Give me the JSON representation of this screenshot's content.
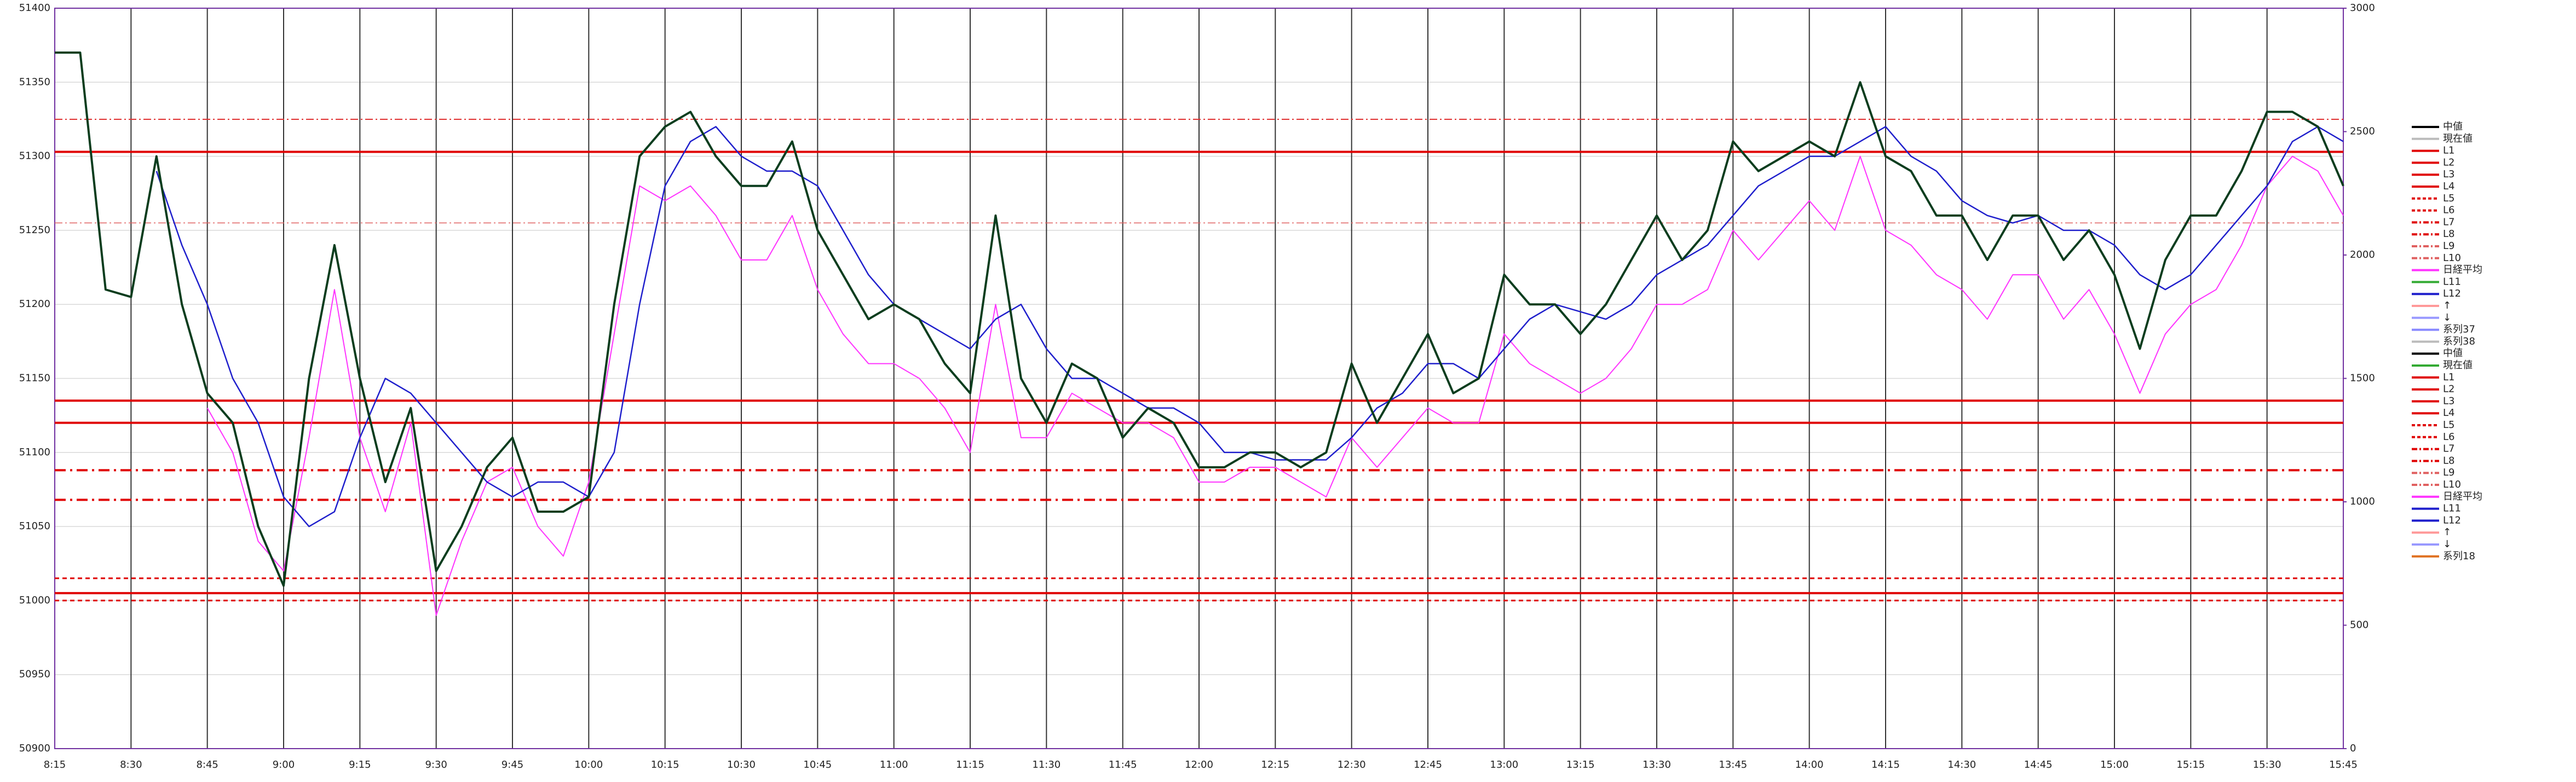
{
  "chart_data": {
    "type": "line",
    "xlim": [
      495,
      945
    ],
    "xticks": [
      {
        "value": 495,
        "label": "8:15"
      },
      {
        "value": 510,
        "label": "8:30"
      },
      {
        "value": 525,
        "label": "8:45"
      },
      {
        "value": 540,
        "label": "9:00"
      },
      {
        "value": 555,
        "label": "9:15"
      },
      {
        "value": 570,
        "label": "9:30"
      },
      {
        "value": 585,
        "label": "9:45"
      },
      {
        "value": 600,
        "label": "10:00"
      },
      {
        "value": 615,
        "label": "10:15"
      },
      {
        "value": 630,
        "label": "10:30"
      },
      {
        "value": 645,
        "label": "10:45"
      },
      {
        "value": 660,
        "label": "11:00"
      },
      {
        "value": 675,
        "label": "11:15"
      },
      {
        "value": 690,
        "label": "11:30"
      },
      {
        "value": 705,
        "label": "11:45"
      },
      {
        "value": 720,
        "label": "12:00"
      },
      {
        "value": 735,
        "label": "12:15"
      },
      {
        "value": 750,
        "label": "12:30"
      },
      {
        "value": 765,
        "label": "12:45"
      },
      {
        "value": 780,
        "label": "13:00"
      },
      {
        "value": 795,
        "label": "13:15"
      },
      {
        "value": 810,
        "label": "13:30"
      },
      {
        "value": 825,
        "label": "13:45"
      },
      {
        "value": 840,
        "label": "14:00"
      },
      {
        "value": 855,
        "label": "14:15"
      },
      {
        "value": 870,
        "label": "14:30"
      },
      {
        "value": 885,
        "label": "14:45"
      },
      {
        "value": 900,
        "label": "15:00"
      },
      {
        "value": 915,
        "label": "15:15"
      },
      {
        "value": 930,
        "label": "15:30"
      },
      {
        "value": 945,
        "label": "15:45"
      }
    ],
    "ylim": [
      50900,
      51400
    ],
    "yticks": [
      50900,
      50950,
      51000,
      51050,
      51100,
      51150,
      51200,
      51250,
      51300,
      51350,
      51400
    ],
    "y2lim": [
      0,
      3000
    ],
    "y2ticks": [
      0,
      500,
      1000,
      1500,
      2000,
      2500,
      3000
    ],
    "grid": true,
    "x": [
      495,
      500,
      505,
      510,
      515,
      520,
      525,
      530,
      535,
      540,
      545,
      550,
      555,
      560,
      565,
      570,
      575,
      580,
      585,
      590,
      595,
      600,
      605,
      610,
      615,
      620,
      625,
      630,
      635,
      640,
      645,
      650,
      655,
      660,
      665,
      670,
      675,
      680,
      685,
      690,
      695,
      700,
      705,
      710,
      715,
      720,
      725,
      730,
      735,
      740,
      745,
      750,
      755,
      760,
      765,
      770,
      775,
      780,
      785,
      790,
      795,
      800,
      805,
      810,
      815,
      820,
      825,
      830,
      835,
      840,
      845,
      850,
      855,
      860,
      865,
      870,
      875,
      880,
      885,
      890,
      895,
      900,
      905,
      910,
      915,
      920,
      925,
      930,
      935,
      940,
      945
    ],
    "series": [
      {
        "name": "中値",
        "color": "#0b3d1e",
        "width": 4,
        "values": [
          51370,
          51370,
          51210,
          51205,
          51300,
          51200,
          51140,
          51120,
          51050,
          51010,
          51150,
          51240,
          51150,
          51080,
          51130,
          51020,
          51050,
          51090,
          51110,
          51060,
          51060,
          51070,
          51200,
          51300,
          51320,
          51330,
          51300,
          51280,
          51280,
          51310,
          51250,
          51220,
          51190,
          51200,
          51190,
          51160,
          51140,
          51260,
          51150,
          51120,
          51160,
          51150,
          51110,
          51130,
          51120,
          51090,
          51090,
          51100,
          51100,
          51090,
          51100,
          51160,
          51120,
          51150,
          51180,
          51140,
          51150,
          51220,
          51200,
          51200,
          51180,
          51200,
          51230,
          51260,
          51230,
          51250,
          51310,
          51290,
          51300,
          51310,
          51300,
          51350,
          51300,
          51290,
          51260,
          51260,
          51230,
          51260,
          51260,
          51230,
          51250,
          51220,
          51170,
          51230,
          51260,
          51260,
          51290,
          51330,
          51330,
          51320,
          51280
        ]
      },
      {
        "name": "L12",
        "color": "#1f1fcc",
        "width": 2.5,
        "values": [
          null,
          null,
          null,
          null,
          51290,
          51240,
          51200,
          51150,
          51120,
          51070,
          51050,
          51060,
          51110,
          51150,
          51140,
          51120,
          51100,
          51080,
          51070,
          51080,
          51080,
          51070,
          51100,
          51200,
          51280,
          51310,
          51320,
          51300,
          51290,
          51290,
          51280,
          51250,
          51220,
          51200,
          51190,
          51180,
          51170,
          51190,
          51200,
          51170,
          51150,
          51150,
          51140,
          51130,
          51130,
          51120,
          51100,
          51100,
          51095,
          51095,
          51095,
          51110,
          51130,
          51140,
          51160,
          51160,
          51150,
          51170,
          51190,
          51200,
          51195,
          51190,
          51200,
          51220,
          51230,
          51240,
          51260,
          51280,
          51290,
          51300,
          51300,
          51310,
          51320,
          51300,
          51290,
          51270,
          51260,
          51255,
          51260,
          51250,
          51250,
          51240,
          51220,
          51210,
          51220,
          51240,
          51260,
          51280,
          51310,
          51320,
          51310
        ]
      },
      {
        "name": "日経平均",
        "color": "#ff33ff",
        "width": 2,
        "values": [
          null,
          null,
          null,
          null,
          null,
          null,
          51130,
          51100,
          51040,
          51020,
          51110,
          51210,
          51110,
          51060,
          51120,
          50990,
          51040,
          51080,
          51090,
          51050,
          51030,
          51080,
          51180,
          51280,
          51270,
          51280,
          51260,
          51230,
          51230,
          51260,
          51210,
          51180,
          51160,
          51160,
          51150,
          51130,
          51100,
          51200,
          51110,
          51110,
          51140,
          51130,
          51120,
          51120,
          51110,
          51080,
          51080,
          51090,
          51090,
          51080,
          51070,
          51110,
          51090,
          51110,
          51130,
          51120,
          51120,
          51180,
          51160,
          51150,
          51140,
          51150,
          51170,
          51200,
          51200,
          51210,
          51250,
          51230,
          51250,
          51270,
          51250,
          51300,
          51250,
          51240,
          51220,
          51210,
          51190,
          51220,
          51220,
          51190,
          51210,
          51180,
          51140,
          51180,
          51200,
          51210,
          51240,
          51280,
          51300,
          51290,
          51260
        ]
      }
    ],
    "levels": [
      {
        "value": 51325,
        "color": "#e03030",
        "dash": "14 5 3 5",
        "width": 2
      },
      {
        "value": 51303,
        "color": "#e00000",
        "dash": "",
        "width": 4
      },
      {
        "value": 51255,
        "color": "#e06060",
        "dash": "14 5 3 5",
        "width": 1.5
      },
      {
        "value": 51135,
        "color": "#e00000",
        "dash": "",
        "width": 4
      },
      {
        "value": 51120,
        "color": "#e00000",
        "dash": "",
        "width": 4
      },
      {
        "value": 51088,
        "color": "#e00000",
        "dash": "20 8 4 8",
        "width": 4
      },
      {
        "value": 51068,
        "color": "#e00000",
        "dash": "20 8 4 8",
        "width": 4
      },
      {
        "value": 51015,
        "color": "#e00000",
        "dash": "8 6",
        "width": 3
      },
      {
        "value": 51005,
        "color": "#e00000",
        "dash": "",
        "width": 4
      },
      {
        "value": 51000,
        "color": "#e00000",
        "dash": "8 6",
        "width": 3
      }
    ],
    "legend": [
      {
        "name": "中値",
        "color": "#000000",
        "dash": ""
      },
      {
        "name": "現在値",
        "color": "#bbbbbb",
        "dash": ""
      },
      {
        "name": "L1",
        "color": "#e00000",
        "dash": ""
      },
      {
        "name": "L2",
        "color": "#e00000",
        "dash": ""
      },
      {
        "name": "L3",
        "color": "#e00000",
        "dash": ""
      },
      {
        "name": "L4",
        "color": "#e00000",
        "dash": ""
      },
      {
        "name": "L5",
        "color": "#e00000",
        "dash": "6 4"
      },
      {
        "name": "L6",
        "color": "#e00000",
        "dash": "6 4"
      },
      {
        "name": "L7",
        "color": "#e00000",
        "dash": "10 4 3 4"
      },
      {
        "name": "L8",
        "color": "#e00000",
        "dash": "10 4 3 4"
      },
      {
        "name": "L9",
        "color": "#e06060",
        "dash": "10 4 3 4"
      },
      {
        "name": "L10",
        "color": "#e06060",
        "dash": "10 4 3 4"
      },
      {
        "name": "日経平均",
        "color": "#ff33ff",
        "dash": ""
      },
      {
        "name": "L11",
        "color": "#33aa33",
        "dash": ""
      },
      {
        "name": "L12",
        "color": "#1f1fcc",
        "dash": ""
      },
      {
        "name": "↑",
        "color": "#ff9999",
        "dash": ""
      },
      {
        "name": "↓",
        "color": "#9999ff",
        "dash": ""
      },
      {
        "name": "系列37",
        "color": "#8888ff",
        "dash": ""
      },
      {
        "name": "系列38",
        "color": "#bbbbbb",
        "dash": ""
      },
      {
        "name": "中値",
        "color": "#000000",
        "dash": ""
      },
      {
        "name": "現在値",
        "color": "#33aa33",
        "dash": ""
      },
      {
        "name": "L1",
        "color": "#e00000",
        "dash": ""
      },
      {
        "name": "L2",
        "color": "#e00000",
        "dash": ""
      },
      {
        "name": "L3",
        "color": "#e00000",
        "dash": ""
      },
      {
        "name": "L4",
        "color": "#e00000",
        "dash": ""
      },
      {
        "name": "L5",
        "color": "#e00000",
        "dash": "6 4"
      },
      {
        "name": "L6",
        "color": "#e00000",
        "dash": "6 4"
      },
      {
        "name": "L7",
        "color": "#e00000",
        "dash": "10 4 3 4"
      },
      {
        "name": "L8",
        "color": "#e00000",
        "dash": "10 4 3 4"
      },
      {
        "name": "L9",
        "color": "#e06060",
        "dash": "10 4 3 4"
      },
      {
        "name": "L10",
        "color": "#e06060",
        "dash": "10 4 3 4"
      },
      {
        "name": "日経平均",
        "color": "#ff33ff",
        "dash": ""
      },
      {
        "name": "L11",
        "color": "#1f1fcc",
        "dash": ""
      },
      {
        "name": "L12",
        "color": "#1f1fcc",
        "dash": ""
      },
      {
        "name": "↑",
        "color": "#ff9999",
        "dash": ""
      },
      {
        "name": "↓",
        "color": "#9999ff",
        "dash": ""
      },
      {
        "name": "系列18",
        "color": "#e07020",
        "dash": ""
      }
    ]
  }
}
